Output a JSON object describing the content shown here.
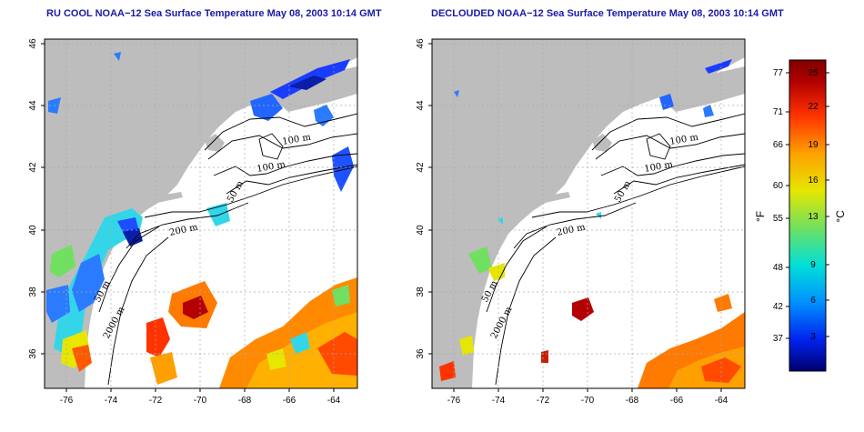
{
  "maps": [
    {
      "title": "RU COOL NOAA−12 Sea Surface Temperature May 08, 2003 10:14 GMT",
      "isobath_labels": [
        "100 m",
        "100 m",
        "50 m",
        "200 m",
        "50 m",
        "2000 m"
      ],
      "x_ticks": [
        "-76",
        "-74",
        "-72",
        "-70",
        "-68",
        "-66",
        "-64"
      ],
      "y_ticks": [
        "46",
        "44",
        "42",
        "40",
        "38",
        "36"
      ]
    },
    {
      "title": "DECLOUDED NOAA−12 Sea Surface Temperature May 08, 2003 10:14 GMT",
      "isobath_labels": [
        "100 m",
        "100 m",
        "50 m",
        "200 m",
        "50 m",
        "2000 m"
      ],
      "x_ticks": [
        "-76",
        "-74",
        "-72",
        "-70",
        "-68",
        "-66",
        "-64"
      ],
      "y_ticks": [
        "46",
        "44",
        "42",
        "40",
        "38",
        "36"
      ]
    }
  ],
  "colorbar": {
    "fahrenheit_ticks": [
      "77",
      "71",
      "66",
      "60",
      "55",
      "48",
      "42",
      "37"
    ],
    "celsius_ticks": [
      "25",
      "22",
      "19",
      "16",
      "13",
      "9",
      "6",
      "3"
    ],
    "fahrenheit_label": "°F",
    "celsius_label": "°C",
    "colors": [
      "#00006e",
      "#0033ff",
      "#00a0ff",
      "#00e0d8",
      "#66e066",
      "#e6e600",
      "#ffa000",
      "#ff3300",
      "#b40000",
      "#800000"
    ]
  },
  "colors": {
    "land": "#bdbdbd",
    "title": "#1a1aa6",
    "grid": "#aaaaaa"
  }
}
